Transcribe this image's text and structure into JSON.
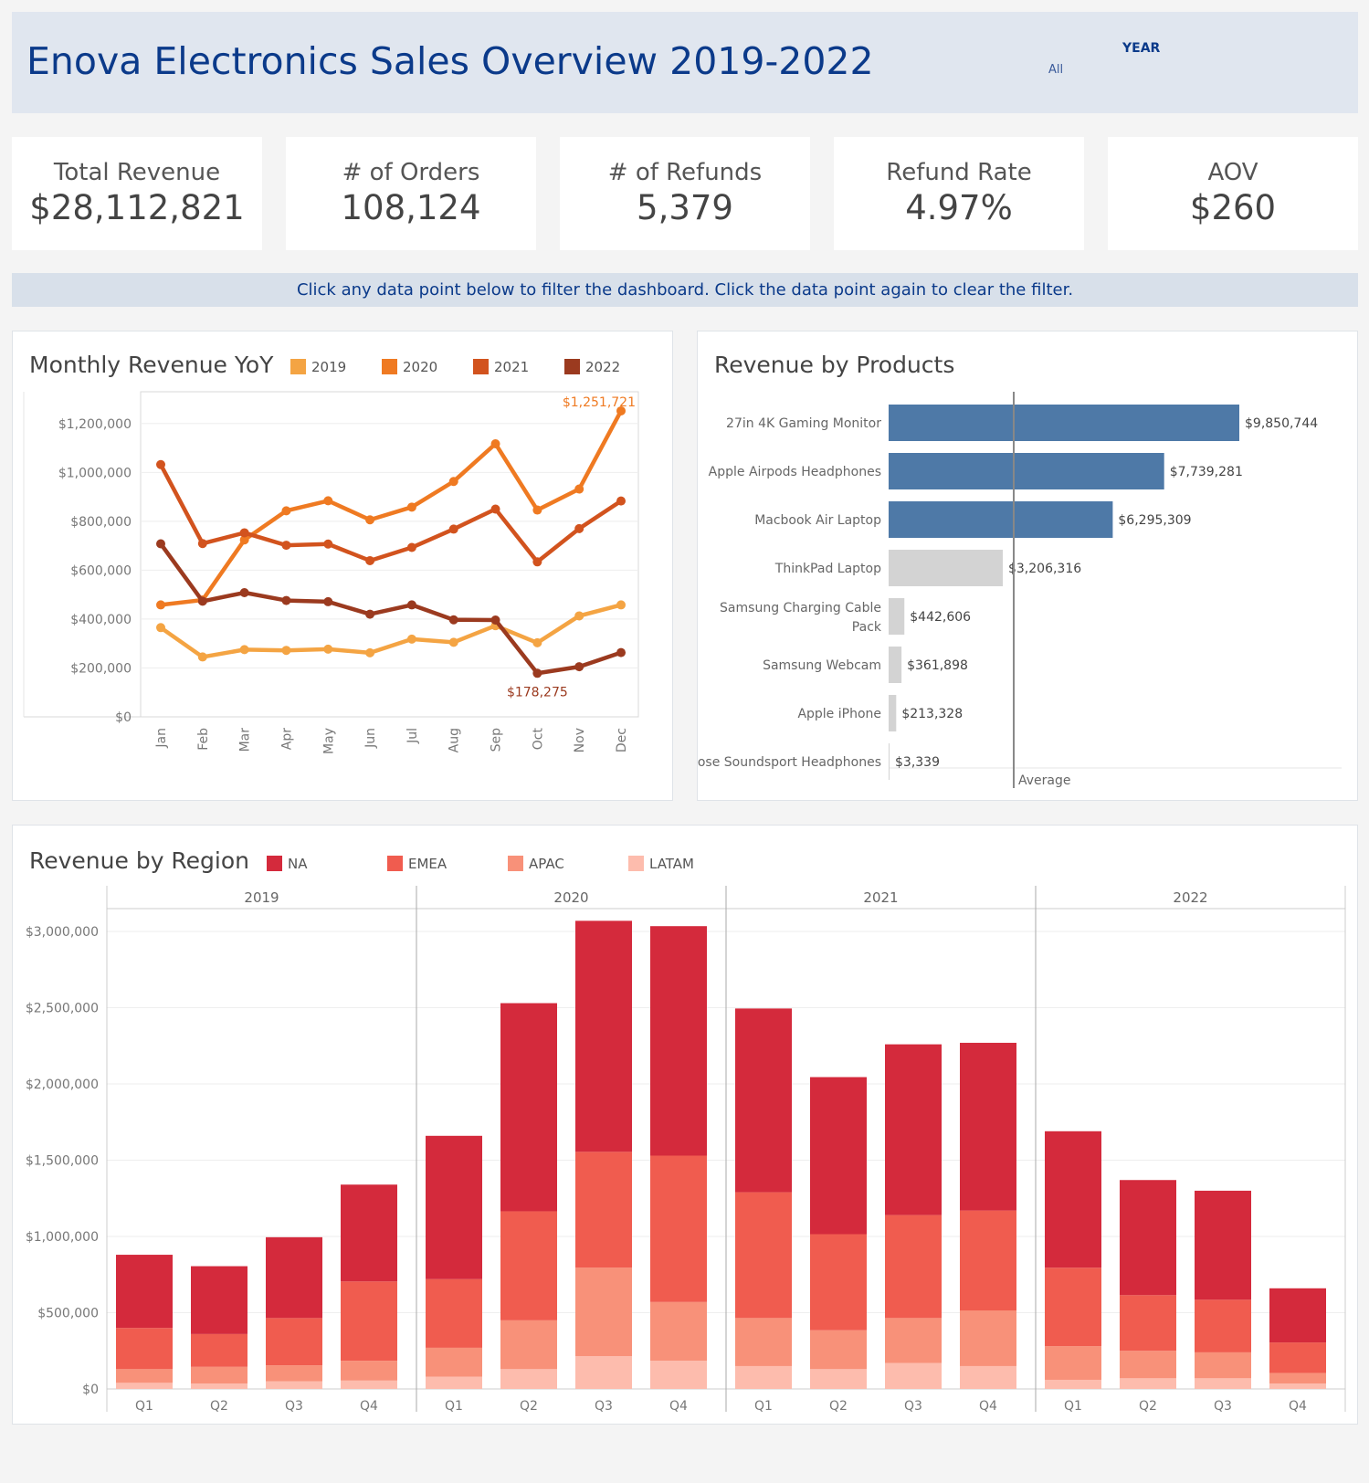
{
  "header": {
    "title": "Enova Electronics Sales Overview 2019-2022",
    "filter_label": "YEAR",
    "filter_value": "All"
  },
  "kpis": [
    {
      "label": "Total Revenue",
      "value": "$28,112,821"
    },
    {
      "label": "# of Orders",
      "value": "108,124"
    },
    {
      "label": "# of Refunds",
      "value": "5,379"
    },
    {
      "label": "Refund Rate",
      "value": "4.97%"
    },
    {
      "label": "AOV",
      "value": "$260"
    }
  ],
  "banner": "Click any data point below to filter the dashboard. Click the data point again to clear the filter.",
  "colors": {
    "2019": "#f4a443",
    "2020": "#ef7a22",
    "2021": "#d2531e",
    "2022": "#9b3a1f",
    "product_top": "#4e79a7",
    "product_other": "#d3d3d3",
    "NA": "#d42a3c",
    "EMEA": "#f05c4f",
    "APAC": "#f89179",
    "LATAM": "#fdbcad"
  },
  "chart_data": [
    {
      "id": "monthly",
      "type": "line",
      "title": "Monthly Revenue YoY",
      "categories": [
        "Jan",
        "Feb",
        "Mar",
        "Apr",
        "May",
        "Jun",
        "Jul",
        "Aug",
        "Sep",
        "Oct",
        "Nov",
        "Dec"
      ],
      "ylim": [
        0,
        1330000
      ],
      "yticks": [
        0,
        200000,
        400000,
        600000,
        800000,
        1000000,
        1200000
      ],
      "ytick_labels": [
        "$0",
        "$200,000",
        "$400,000",
        "$600,000",
        "$800,000",
        "$1,000,000",
        "$1,200,000"
      ],
      "series": [
        {
          "name": "2019",
          "values": [
            365000,
            245000,
            275000,
            272000,
            277000,
            262000,
            318000,
            305000,
            373000,
            303000,
            413000,
            458000
          ]
        },
        {
          "name": "2020",
          "values": [
            458000,
            478000,
            724000,
            843000,
            884000,
            806000,
            858000,
            963000,
            1117000,
            846000,
            932000,
            1251721
          ]
        },
        {
          "name": "2021",
          "values": [
            1032000,
            709000,
            753000,
            702000,
            707000,
            639000,
            693000,
            768000,
            850000,
            634000,
            770000,
            883000
          ]
        },
        {
          "name": "2022",
          "values": [
            708000,
            473000,
            508000,
            476000,
            471000,
            420000,
            458000,
            397000,
            396000,
            178275,
            205000,
            263000
          ]
        }
      ],
      "annotations": [
        {
          "series": "2020",
          "index": 11,
          "text": "$1,251,721"
        },
        {
          "series": "2022",
          "index": 9,
          "text": "$178,275"
        }
      ]
    },
    {
      "id": "products",
      "type": "bar",
      "title": "Revenue by Products",
      "categories": [
        "27in 4K Gaming Monitor",
        "Apple Airpods Headphones",
        "Macbook Air Laptop",
        "ThinkPad Laptop",
        "Samsung Charging Cable Pack",
        "Samsung Webcam",
        "Apple iPhone",
        "Bose Soundsport Headphones"
      ],
      "values": [
        9850744,
        7739281,
        6295309,
        3206316,
        442606,
        361898,
        213328,
        3339
      ],
      "labels": [
        "$9,850,744",
        "$7,739,281",
        "$6,295,309",
        "$3,206,316",
        "$442,606",
        "$361,898",
        "$213,328",
        "$3,339"
      ],
      "highlight_top": 3,
      "reference_line": {
        "label": "Average",
        "value": 3514103
      }
    },
    {
      "id": "regions",
      "type": "bar",
      "stacked": true,
      "title": "Revenue by Region",
      "years": [
        "2019",
        "2020",
        "2021",
        "2022"
      ],
      "quarters": [
        "Q1",
        "Q2",
        "Q3",
        "Q4"
      ],
      "ylim": [
        0,
        3150000
      ],
      "yticks": [
        0,
        500000,
        1000000,
        1500000,
        2000000,
        2500000,
        3000000
      ],
      "ytick_labels": [
        "$0",
        "$500,000",
        "$1,000,000",
        "$1,500,000",
        "$2,000,000",
        "$2,500,000",
        "$3,000,000"
      ],
      "series": [
        {
          "name": "LATAM",
          "values": [
            40000,
            35000,
            50000,
            55000,
            80000,
            130000,
            215000,
            185000,
            150000,
            130000,
            170000,
            150000,
            60000,
            70000,
            70000,
            35000
          ]
        },
        {
          "name": "APAC",
          "values": [
            90000,
            110000,
            105000,
            130000,
            190000,
            320000,
            580000,
            385000,
            315000,
            255000,
            295000,
            365000,
            220000,
            180000,
            170000,
            70000
          ]
        },
        {
          "name": "EMEA",
          "values": [
            270000,
            215000,
            310000,
            520000,
            450000,
            715000,
            760000,
            960000,
            825000,
            630000,
            675000,
            655000,
            515000,
            365000,
            345000,
            200000
          ]
        },
        {
          "name": "NA",
          "values": [
            480000,
            445000,
            530000,
            635000,
            940000,
            1365000,
            1515000,
            1505000,
            1205000,
            1030000,
            1120000,
            1100000,
            895000,
            755000,
            715000,
            355000
          ]
        }
      ]
    }
  ]
}
